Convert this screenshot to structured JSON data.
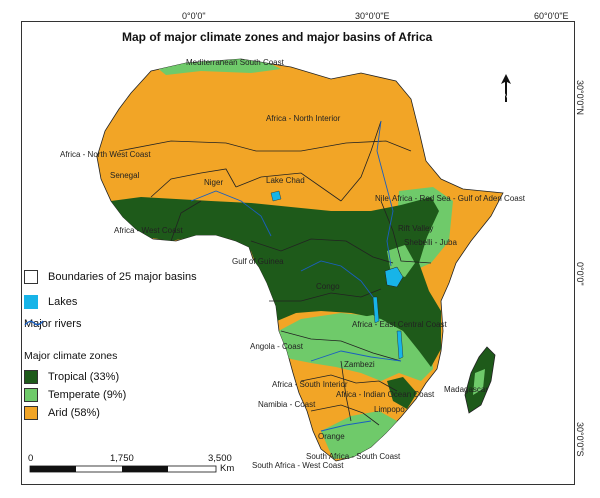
{
  "map": {
    "title": "Map of major climate zones and major basins of Africa",
    "coords": {
      "top": [
        "0°0'0\"",
        "30°0'0\"E",
        "60°0'0\"E"
      ],
      "right": [
        "30°0'0\"N",
        "0°0'0\"",
        "30°0'0\"S"
      ]
    },
    "basin_labels": [
      "Mediterranean South Coast",
      "Africa - North Interior",
      "Africa - North West Coast",
      "Senegal",
      "Niger",
      "Lake Chad",
      "Nile",
      "Africa - Red Sea - Gulf of Aden Coast",
      "Africa - West Coast",
      "Rift Valley",
      "Shebelli - Juba",
      "Gulf of Guinea",
      "Congo",
      "Africa - East Central Coast",
      "Angola - Coast",
      "Zambezi",
      "Africa - South Interior",
      "Africa - Indian Ocean Coast",
      "Madagascar",
      "Namibia - Coast",
      "Limpopo",
      "Orange",
      "South Africa - South Coast",
      "South Africa - West Coast"
    ],
    "legend": {
      "basins": "Boundaries of 25 major basins",
      "lakes": "Lakes",
      "rivers": "Major rivers",
      "zones_title": "Major climate zones",
      "tropical": "Tropical (33%)",
      "temperate": "Temperate (9%)",
      "arid": "Arid (58%)"
    },
    "scale": {
      "ticks": [
        "0",
        "1,750",
        "3,500"
      ],
      "unit": "Km"
    },
    "north_label": "N",
    "colors": {
      "tropical": "#1e5a1a",
      "temperate": "#6fca6a",
      "arid": "#f2a526",
      "lakes": "#17b4e8",
      "rivers": "#1a5fc0",
      "boundary": "#222222"
    },
    "zone_shares": {
      "tropical": 33,
      "temperate": 9,
      "arid": 58
    }
  }
}
